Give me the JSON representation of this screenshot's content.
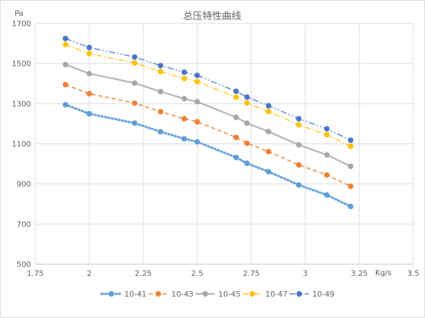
{
  "chart_data": {
    "type": "line",
    "title": "总压特性曲线",
    "xlabel": "Kg/s",
    "ylabel": "Pa",
    "xlim": [
      1.75,
      3.5
    ],
    "ylim": [
      500,
      1700
    ],
    "x_ticks": [
      1.75,
      2,
      2.25,
      2.5,
      2.75,
      3,
      3.25,
      3.5
    ],
    "x_tick_labels": [
      "1.75",
      "2",
      "2.25",
      "2.5",
      "2.75",
      "3",
      "3.25",
      "3.5"
    ],
    "y_ticks": [
      500,
      700,
      900,
      1100,
      1300,
      1500,
      1700
    ],
    "y_tick_labels": [
      "500",
      "700",
      "900",
      "1100",
      "1300",
      "1500",
      "1700"
    ],
    "grid": "vertical and horizontal",
    "legend_position": "bottom",
    "series": [
      {
        "name": "10-41",
        "color": "#5B9BD5",
        "dash": "dotted",
        "points": [
          [
            1.89,
            1295
          ],
          [
            2.0,
            1250
          ],
          [
            2.21,
            1203
          ],
          [
            2.33,
            1160
          ],
          [
            2.44,
            1125
          ],
          [
            2.5,
            1110
          ],
          [
            2.68,
            1032
          ],
          [
            2.73,
            1003
          ],
          [
            2.83,
            961
          ],
          [
            2.97,
            895
          ],
          [
            3.1,
            845
          ],
          [
            3.21,
            788
          ]
        ]
      },
      {
        "name": "10-43",
        "color": "#ED7D31",
        "dash": "dashed",
        "points": [
          [
            1.89,
            1395
          ],
          [
            2.0,
            1350
          ],
          [
            2.21,
            1303
          ],
          [
            2.33,
            1260
          ],
          [
            2.44,
            1225
          ],
          [
            2.5,
            1210
          ],
          [
            2.68,
            1132
          ],
          [
            2.73,
            1103
          ],
          [
            2.83,
            1061
          ],
          [
            2.97,
            995
          ],
          [
            3.1,
            945
          ],
          [
            3.21,
            888
          ]
        ]
      },
      {
        "name": "10-45",
        "color": "#A5A5A5",
        "dash": "solid",
        "points": [
          [
            1.89,
            1495
          ],
          [
            2.0,
            1450
          ],
          [
            2.21,
            1403
          ],
          [
            2.33,
            1360
          ],
          [
            2.44,
            1325
          ],
          [
            2.5,
            1310
          ],
          [
            2.68,
            1232
          ],
          [
            2.73,
            1203
          ],
          [
            2.83,
            1161
          ],
          [
            2.97,
            1095
          ],
          [
            3.1,
            1045
          ],
          [
            3.21,
            988
          ]
        ]
      },
      {
        "name": "10-47",
        "color": "#FFC000",
        "dash": "dashdot",
        "points": [
          [
            1.89,
            1595
          ],
          [
            2.0,
            1550
          ],
          [
            2.21,
            1503
          ],
          [
            2.33,
            1460
          ],
          [
            2.44,
            1425
          ],
          [
            2.5,
            1410
          ],
          [
            2.68,
            1332
          ],
          [
            2.73,
            1303
          ],
          [
            2.83,
            1261
          ],
          [
            2.97,
            1195
          ],
          [
            3.1,
            1145
          ],
          [
            3.21,
            1088
          ]
        ]
      },
      {
        "name": "10-49",
        "color": "#4472C4",
        "dash": "dashdotdot",
        "points": [
          [
            1.89,
            1625
          ],
          [
            2.0,
            1580
          ],
          [
            2.21,
            1533
          ],
          [
            2.33,
            1490
          ],
          [
            2.44,
            1457
          ],
          [
            2.5,
            1441
          ],
          [
            2.68,
            1362
          ],
          [
            2.73,
            1333
          ],
          [
            2.83,
            1290
          ],
          [
            2.97,
            1225
          ],
          [
            3.1,
            1175
          ],
          [
            3.21,
            1118
          ]
        ]
      }
    ]
  }
}
